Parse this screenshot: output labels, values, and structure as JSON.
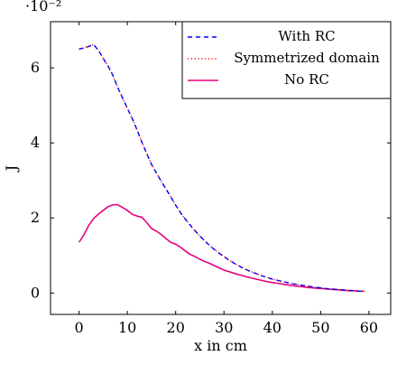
{
  "chart_data": {
    "type": "line",
    "title": "",
    "xlabel": "x in cm",
    "ylabel": "J",
    "y_scale_label": "·10⁻²",
    "xlim": [
      -5.9,
      64.5
    ],
    "ylim": [
      -0.57,
      7.23
    ],
    "xticks": [
      "0",
      "10",
      "20",
      "30",
      "40",
      "50",
      "60"
    ],
    "xtick_values": [
      0,
      10,
      20,
      30,
      40,
      50,
      60
    ],
    "yticks": [
      "0",
      "2",
      "4",
      "6"
    ],
    "ytick_values": [
      0,
      2,
      4,
      6
    ],
    "grid": false,
    "legend_position": "top-right",
    "series": [
      {
        "name": "With RC",
        "color": "#0000ff",
        "style": "dashed",
        "x": [
          0,
          1,
          2,
          3,
          4,
          5,
          6,
          7,
          8,
          9,
          10,
          11,
          12,
          13,
          14,
          15,
          16,
          17,
          18,
          19,
          20,
          21,
          22,
          23,
          24,
          25,
          26,
          27,
          28,
          29,
          30,
          31,
          32,
          33,
          34,
          35,
          36,
          37,
          38,
          39,
          40,
          41,
          42,
          43,
          44,
          45,
          46,
          47,
          48,
          49,
          50,
          51,
          52,
          53,
          54,
          55,
          56,
          57,
          58,
          59
        ],
        "y": [
          6.5,
          6.53,
          6.57,
          6.62,
          6.47,
          6.25,
          6.05,
          5.8,
          5.48,
          5.2,
          4.92,
          4.65,
          4.35,
          4.02,
          3.72,
          3.43,
          3.2,
          2.98,
          2.77,
          2.56,
          2.34,
          2.14,
          1.97,
          1.81,
          1.66,
          1.52,
          1.39,
          1.27,
          1.16,
          1.06,
          0.97,
          0.88,
          0.8,
          0.73,
          0.66,
          0.6,
          0.55,
          0.5,
          0.45,
          0.41,
          0.37,
          0.34,
          0.31,
          0.28,
          0.25,
          0.23,
          0.21,
          0.19,
          0.17,
          0.15,
          0.14,
          0.12,
          0.11,
          0.1,
          0.09,
          0.08,
          0.07,
          0.06,
          0.05,
          0.04
        ]
      },
      {
        "name": "Symmetrized domain",
        "color": "#ff0000",
        "style": "dotted",
        "x": [
          0,
          1,
          2,
          3,
          4,
          5,
          6,
          7,
          8,
          9,
          10,
          11,
          12,
          13,
          14,
          15,
          16,
          17,
          18,
          19,
          20,
          21,
          22,
          23,
          24,
          25,
          26,
          27,
          28,
          29,
          30,
          31,
          32,
          33,
          34,
          35,
          36,
          37,
          38,
          39,
          40,
          41,
          42,
          43,
          44,
          45,
          46,
          47,
          48,
          49,
          50,
          51,
          52,
          53,
          54,
          55,
          56,
          57,
          58,
          59
        ],
        "y": [
          6.5,
          6.53,
          6.57,
          6.62,
          6.47,
          6.25,
          6.05,
          5.8,
          5.48,
          5.2,
          4.92,
          4.65,
          4.35,
          4.02,
          3.72,
          3.43,
          3.2,
          2.98,
          2.77,
          2.56,
          2.34,
          2.14,
          1.97,
          1.81,
          1.66,
          1.52,
          1.39,
          1.27,
          1.16,
          1.06,
          0.97,
          0.88,
          0.8,
          0.73,
          0.66,
          0.6,
          0.55,
          0.5,
          0.45,
          0.41,
          0.37,
          0.34,
          0.31,
          0.28,
          0.25,
          0.23,
          0.21,
          0.19,
          0.17,
          0.15,
          0.14,
          0.12,
          0.11,
          0.1,
          0.09,
          0.08,
          0.07,
          0.06,
          0.05,
          0.04
        ]
      },
      {
        "name": "No RC",
        "color": "#e6007e",
        "style": "solid",
        "x": [
          0,
          1,
          2,
          3,
          4,
          5,
          6,
          7,
          8,
          9,
          10,
          11,
          12,
          13,
          14,
          15,
          16,
          17,
          18,
          19,
          20,
          21,
          22,
          23,
          24,
          25,
          26,
          27,
          28,
          29,
          30,
          31,
          32,
          33,
          34,
          35,
          36,
          37,
          38,
          39,
          40,
          41,
          42,
          43,
          44,
          45,
          46,
          47,
          48,
          49,
          50,
          51,
          52,
          53,
          54,
          55,
          56,
          57,
          58,
          59
        ],
        "y": [
          1.35,
          1.55,
          1.8,
          1.98,
          2.1,
          2.2,
          2.3,
          2.35,
          2.35,
          2.28,
          2.2,
          2.1,
          2.05,
          2.02,
          1.88,
          1.72,
          1.65,
          1.56,
          1.45,
          1.35,
          1.3,
          1.22,
          1.12,
          1.03,
          0.97,
          0.9,
          0.84,
          0.79,
          0.73,
          0.67,
          0.61,
          0.57,
          0.53,
          0.49,
          0.46,
          0.42,
          0.39,
          0.36,
          0.33,
          0.3,
          0.28,
          0.26,
          0.24,
          0.22,
          0.2,
          0.18,
          0.17,
          0.15,
          0.14,
          0.13,
          0.12,
          0.11,
          0.1,
          0.09,
          0.08,
          0.07,
          0.06,
          0.06,
          0.05,
          0.05
        ]
      }
    ]
  }
}
